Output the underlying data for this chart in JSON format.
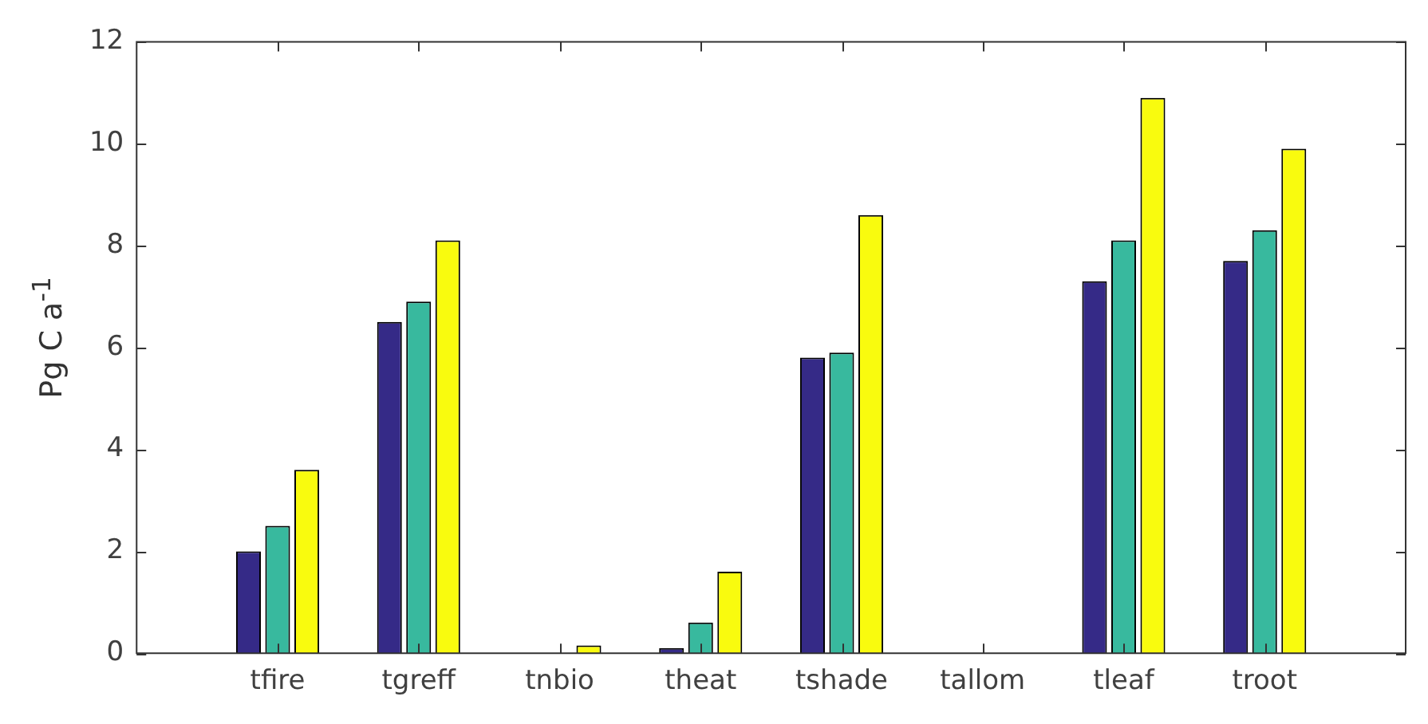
{
  "chart_data": {
    "type": "bar",
    "ylabel": "Pg C a$^{-1}$",
    "categories": [
      "tfire",
      "tgreff",
      "tnbio",
      "theat",
      "tshade",
      "tallom",
      "tleaf",
      "troot"
    ],
    "series": [
      {
        "color": "#352a87",
        "values": [
          2.0,
          6.5,
          0,
          0.1,
          5.8,
          0,
          7.3,
          7.7
        ]
      },
      {
        "color": "#38b99e",
        "values": [
          2.5,
          6.9,
          0,
          0.6,
          5.9,
          0,
          8.1,
          8.3
        ]
      },
      {
        "color": "#f9fb0e",
        "values": [
          3.6,
          8.1,
          0.15,
          1.6,
          8.6,
          0,
          10.9,
          9.9
        ]
      }
    ],
    "ylim": [
      0,
      12
    ],
    "yticks": [
      0,
      2,
      4,
      6,
      8,
      10,
      12
    ],
    "grid": false,
    "legend": false
  }
}
